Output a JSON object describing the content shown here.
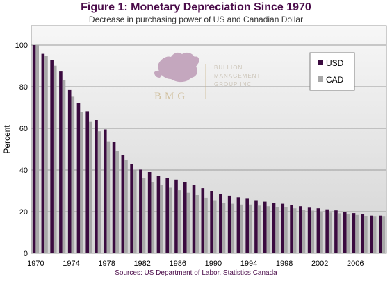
{
  "chart_data": {
    "type": "bar",
    "title": "Figure 1: Monetary Depreciation Since 1970",
    "subtitle": "Decrease in purchasing power of US and Canadian Dollar",
    "ylabel": "Percent",
    "xlabel": "",
    "source": "Sources: US Department of Labor, Statistics Canada",
    "ylim": [
      0,
      100
    ],
    "yticks": [
      0,
      20,
      40,
      60,
      80,
      100
    ],
    "x_tick_labels": [
      "1970",
      "1974",
      "1978",
      "1982",
      "1986",
      "1990",
      "1994",
      "1998",
      "2002",
      "2006"
    ],
    "categories": [
      "1970",
      "1971",
      "1972",
      "1973",
      "1974",
      "1975",
      "1976",
      "1977",
      "1978",
      "1979",
      "1980",
      "1981",
      "1982",
      "1983",
      "1984",
      "1985",
      "1986",
      "1987",
      "1988",
      "1989",
      "1990",
      "1991",
      "1992",
      "1993",
      "1994",
      "1995",
      "1996",
      "1997",
      "1998",
      "1999",
      "2000",
      "2001",
      "2002",
      "2003",
      "2004",
      "2005",
      "2006",
      "2007",
      "2008",
      "2009"
    ],
    "series": [
      {
        "name": "USD",
        "color": "#3a0a3f",
        "values": [
          100,
          95.8,
          92.8,
          87.3,
          78.7,
          72.1,
          68.2,
          64.0,
          59.5,
          53.5,
          47.1,
          42.7,
          40.2,
          39.0,
          37.3,
          36.1,
          35.4,
          34.2,
          32.8,
          31.3,
          29.7,
          28.5,
          27.7,
          26.9,
          26.2,
          25.5,
          24.8,
          24.2,
          23.8,
          23.3,
          22.6,
          21.9,
          21.6,
          21.1,
          20.6,
          19.9,
          19.3,
          18.8,
          18.1,
          18.1
        ]
      },
      {
        "name": "CAD",
        "color": "#a8a8a8",
        "values": [
          100,
          94.9,
          90.1,
          83.3,
          75.2,
          67.9,
          63.1,
          58.6,
          53.8,
          49.3,
          44.7,
          39.9,
          36.1,
          34.1,
          32.7,
          31.5,
          30.3,
          29.1,
          28.0,
          26.7,
          25.5,
          24.2,
          23.8,
          23.4,
          23.4,
          22.9,
          22.6,
          22.2,
          22.0,
          21.6,
          21.0,
          20.5,
          20.1,
          19.6,
          19.2,
          18.8,
          18.4,
          18.0,
          17.6,
          17.6
        ]
      }
    ],
    "grid": true,
    "legend_position": "top-right"
  },
  "watermark": {
    "monogram": "BMG",
    "line1": "BULLION",
    "line2": "MANAGEMENT",
    "line3": "GROUP INC"
  }
}
